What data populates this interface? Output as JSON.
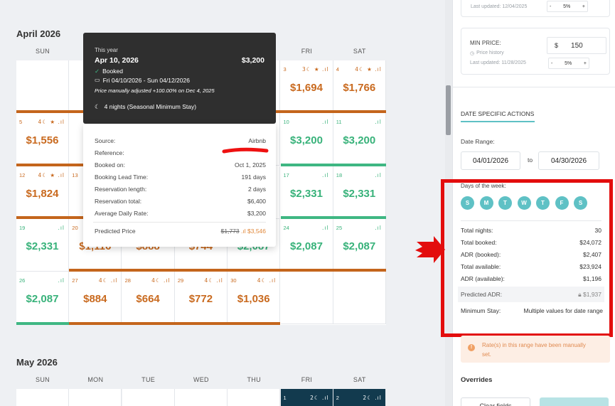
{
  "calendar": {
    "april_title": "April 2026",
    "may_title": "May 2026",
    "dow": [
      "SUN",
      "MON",
      "TUE",
      "WED",
      "THU",
      "FRI",
      "SAT"
    ],
    "april_cells": [
      {
        "row": 0,
        "col": 5,
        "num": "3",
        "icons": "3☾ ★ .ıl",
        "price": "$1,694",
        "color": "o"
      },
      {
        "row": 0,
        "col": 6,
        "num": "4",
        "icons": "4☾ ★ .ıl",
        "price": "$1,766",
        "color": "o"
      },
      {
        "row": 1,
        "col": 0,
        "num": "5",
        "icons": "4☾ ★ .ıl",
        "price": "$1,556",
        "color": "o"
      },
      {
        "row": 1,
        "col": 1,
        "num": "",
        "icons": "",
        "price": "$1",
        "color": "o"
      },
      {
        "row": 1,
        "col": 5,
        "num": "10",
        "icons": ".ıl",
        "price": "$3,200",
        "color": "g"
      },
      {
        "row": 1,
        "col": 6,
        "num": "11",
        "icons": ".ıl",
        "price": "$3,200",
        "color": "g"
      },
      {
        "row": 2,
        "col": 0,
        "num": "12",
        "icons": "4☾ ★ .ıl",
        "price": "$1,824",
        "color": "o"
      },
      {
        "row": 2,
        "col": 1,
        "num": "13",
        "icons": "",
        "price": "$",
        "color": "o"
      },
      {
        "row": 2,
        "col": 5,
        "num": "17",
        "icons": ".ıl",
        "price": "$2,331",
        "color": "g"
      },
      {
        "row": 2,
        "col": 6,
        "num": "18",
        "icons": ".ıl",
        "price": "$2,331",
        "color": "g"
      },
      {
        "row": 3,
        "col": 0,
        "num": "19",
        "icons": ".ıl",
        "price": "$2,331",
        "color": "g"
      },
      {
        "row": 3,
        "col": 1,
        "num": "20",
        "icons": "",
        "price": "$1,116",
        "color": "o"
      },
      {
        "row": 3,
        "col": 2,
        "num": "",
        "icons": "",
        "price": "$888",
        "color": "o"
      },
      {
        "row": 3,
        "col": 3,
        "num": "",
        "icons": "",
        "price": "$744",
        "color": "o"
      },
      {
        "row": 3,
        "col": 4,
        "num": "",
        "icons": "",
        "price": "$2,087",
        "color": "g"
      },
      {
        "row": 3,
        "col": 5,
        "num": "24",
        "icons": ".ıl",
        "price": "$2,087",
        "color": "g"
      },
      {
        "row": 3,
        "col": 6,
        "num": "25",
        "icons": ".ıl",
        "price": "$2,087",
        "color": "g"
      },
      {
        "row": 4,
        "col": 0,
        "num": "26",
        "icons": ".ıl",
        "price": "$2,087",
        "color": "g"
      },
      {
        "row": 4,
        "col": 1,
        "num": "27",
        "icons": "4☾ .ıl",
        "price": "$884",
        "color": "o"
      },
      {
        "row": 4,
        "col": 2,
        "num": "28",
        "icons": "4☾ .ıl",
        "price": "$664",
        "color": "o"
      },
      {
        "row": 4,
        "col": 3,
        "num": "29",
        "icons": "4☾ .ıl",
        "price": "$772",
        "color": "o"
      },
      {
        "row": 4,
        "col": 4,
        "num": "30",
        "icons": "4☾ .ıl",
        "price": "$1,036",
        "color": "o"
      }
    ],
    "may_cells": [
      {
        "col": 5,
        "num": "1",
        "icons": "2☾ .ıl"
      },
      {
        "col": 6,
        "num": "2",
        "icons": "2☾ .ıl"
      }
    ]
  },
  "tooltip": {
    "this_year": "This year",
    "date": "Apr 10, 2026",
    "amount": "$3,200",
    "status": "Booked",
    "range": "Fri 04/10/2026 - Sun 04/12/2026",
    "note": "Price manually adjusted +100.00% on Dec 4, 2025",
    "nights": "4 nights (Seasonal Minimum Stay)",
    "rows": [
      {
        "label": "Source:",
        "value": "Airbnb"
      },
      {
        "label": "Reference:",
        "value": ""
      },
      {
        "label": "Booked on:",
        "value": "Oct 1, 2025"
      },
      {
        "label": "Booking Lead Time:",
        "value": "191 days"
      },
      {
        "label": "Reservation length:",
        "value": "2 days"
      },
      {
        "label": "Reservation total:",
        "value": "$6,400"
      },
      {
        "label": "Average Daily Rate:",
        "value": "$3,200"
      }
    ],
    "predicted_label": "Predicted Price",
    "predicted_old": "$1,773",
    "predicted_new": "$3,546"
  },
  "sidebar": {
    "top_updated": "Last updated: 12/04/2025",
    "top_pct": "5%",
    "min_price_label": "MIN PRICE:",
    "min_price_currency": "$",
    "min_price_value": "150",
    "price_history": "Price history",
    "min_updated": "Last updated: 11/28/2025",
    "min_pct": "5%",
    "minus": "-",
    "plus": "+",
    "section_title": "DATE SPECIFIC ACTIONS",
    "date_range_label": "Date Range:",
    "date_from": "04/01/2026",
    "date_to_sep": "to",
    "date_to": "04/30/2026",
    "days_label": "Days of the week:",
    "days": [
      "S",
      "M",
      "T",
      "W",
      "T",
      "F",
      "S"
    ],
    "summary": [
      {
        "label": "Total nights:",
        "value": "30"
      },
      {
        "label": "Total booked:",
        "value": "$24,072"
      },
      {
        "label": "ADR (booked):",
        "value": "$2,407"
      },
      {
        "label": "Total available:",
        "value": "$23,924"
      },
      {
        "label": "ADR (available):",
        "value": "$1,196"
      }
    ],
    "predicted_adr_label": "Predicted ADR:",
    "predicted_adr_value": "$1,937",
    "min_stay_label": "Minimum Stay:",
    "min_stay_value": "Multiple values for date range",
    "warning": "Rate(s) in this range have been manually set.",
    "overrides": "Overrides",
    "clear_fields": "Clear fields"
  },
  "colors": {
    "orange": "#c96a1f",
    "green": "#38b27a",
    "teal": "#5fc1c5",
    "red": "#e30d0d",
    "navy": "#123a4e"
  }
}
